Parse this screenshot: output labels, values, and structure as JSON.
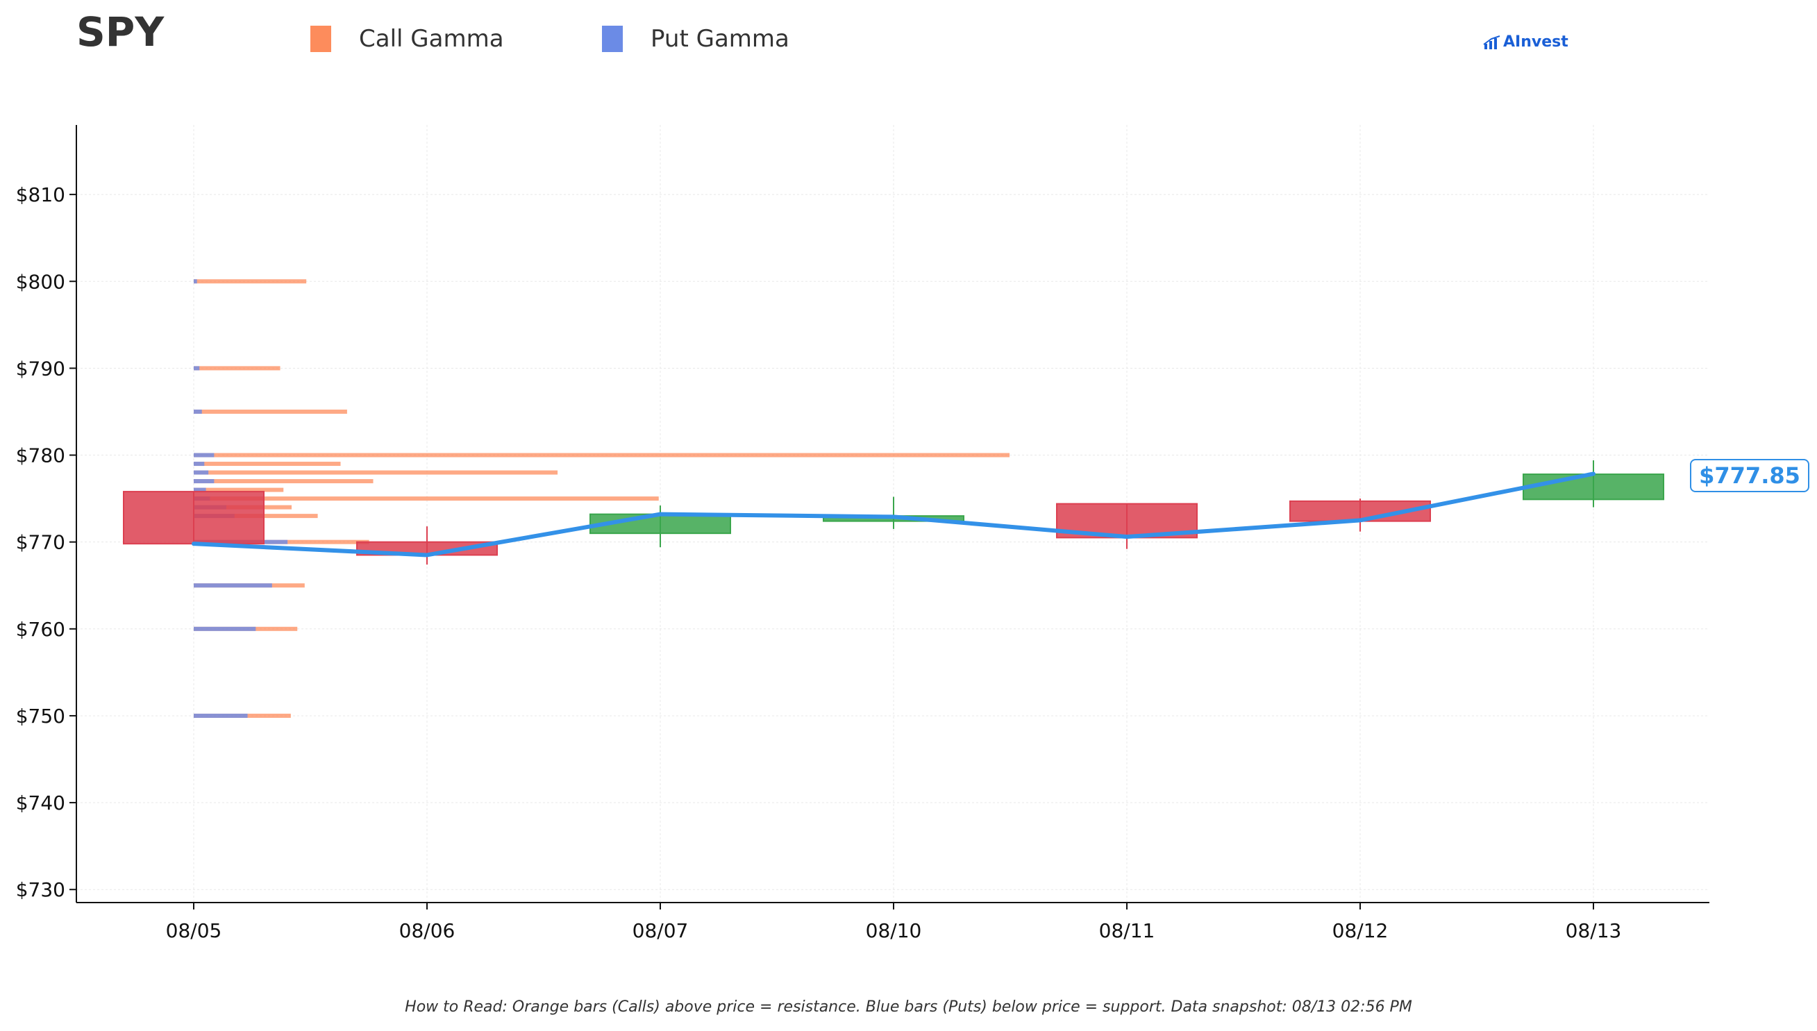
{
  "header": {
    "ticker": "SPY",
    "logo_text": "AInvest"
  },
  "legend": [
    {
      "label": "Call Gamma",
      "color": "#fd8c5c"
    },
    {
      "label": "Put Gamma",
      "color": "#6b8be6"
    }
  ],
  "last_price_label": "$777.85",
  "footnote": "How to Read: Orange bars (Calls) above price = resistance. Blue bars (Puts) below price = support. Data snapshot: 08/13 02:56 PM",
  "colors": {
    "call": "#fd8c5c",
    "put": "#6b8be6",
    "up_candle": "#3aa64c",
    "down_candle": "#dc3f50",
    "price_line": "#3391e8"
  },
  "chart_data": {
    "type": "candlestick",
    "categories": [
      "08/05",
      "08/06",
      "08/07",
      "08/10",
      "08/11",
      "08/12",
      "08/13"
    ],
    "ylim": [
      728.5,
      818
    ],
    "yticks": [
      730,
      740,
      750,
      760,
      770,
      780,
      790,
      800,
      810
    ],
    "ytick_prefix": "$",
    "grid": true,
    "candles": [
      {
        "date": "08/05",
        "open": 775.8,
        "close": 769.8,
        "high": 775.8,
        "low": 769.8
      },
      {
        "date": "08/06",
        "open": 770.0,
        "close": 768.5,
        "high": 771.8,
        "low": 767.4
      },
      {
        "date": "08/07",
        "open": 771.0,
        "close": 773.2,
        "high": 774.2,
        "low": 769.4
      },
      {
        "date": "08/10",
        "open": 772.4,
        "close": 773.0,
        "high": 775.2,
        "low": 771.5
      },
      {
        "date": "08/11",
        "open": 774.4,
        "close": 770.5,
        "high": 774.4,
        "low": 769.2
      },
      {
        "date": "08/12",
        "open": 774.7,
        "close": 772.4,
        "high": 775.0,
        "low": 771.2
      },
      {
        "date": "08/13",
        "open": 774.9,
        "close": 777.8,
        "high": 779.4,
        "low": 774.0
      }
    ],
    "price_line": {
      "x": [
        "08/05",
        "08/06",
        "08/07",
        "08/10",
        "08/11",
        "08/12",
        "08/13"
      ],
      "y": [
        769.8,
        768.5,
        773.2,
        772.9,
        770.6,
        772.5,
        777.85
      ]
    },
    "gamma_by_strike": [
      {
        "strike": 800,
        "call": 0.138,
        "put": 0.004
      },
      {
        "strike": 790,
        "call": 0.106,
        "put": 0.007
      },
      {
        "strike": 785,
        "call": 0.188,
        "put": 0.01
      },
      {
        "strike": 780,
        "call": 1.0,
        "put": 0.025
      },
      {
        "strike": 779,
        "call": 0.18,
        "put": 0.013
      },
      {
        "strike": 778,
        "call": 0.446,
        "put": 0.018
      },
      {
        "strike": 777,
        "call": 0.22,
        "put": 0.025
      },
      {
        "strike": 776,
        "call": 0.11,
        "put": 0.015
      },
      {
        "strike": 775,
        "call": 0.57,
        "put": 0.02
      },
      {
        "strike": 774,
        "call": 0.12,
        "put": 0.04
      },
      {
        "strike": 773,
        "call": 0.152,
        "put": 0.05
      },
      {
        "strike": 770,
        "call": 0.215,
        "put": 0.115
      },
      {
        "strike": 765,
        "call": 0.136,
        "put": 0.096
      },
      {
        "strike": 760,
        "call": 0.127,
        "put": 0.076
      },
      {
        "strike": 750,
        "call": 0.119,
        "put": 0.066
      }
    ]
  }
}
